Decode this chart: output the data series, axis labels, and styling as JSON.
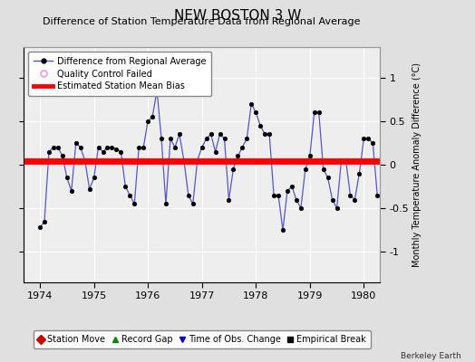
{
  "title": "NEW BOSTON 3 W",
  "subtitle": "Difference of Station Temperature Data from Regional Average",
  "ylabel_right": "Monthly Temperature Anomaly Difference (°C)",
  "ylim": [
    -1.35,
    1.35
  ],
  "xlim": [
    1973.7,
    1980.3
  ],
  "xticks": [
    1974,
    1975,
    1976,
    1977,
    1978,
    1979,
    1980
  ],
  "yticks_right": [
    -1,
    -0.5,
    0,
    0.5,
    1
  ],
  "background_color": "#e0e0e0",
  "plot_bg_color": "#eeeeee",
  "grid_color": "#ffffff",
  "line_color": "#5555cc",
  "marker_color": "#000000",
  "bias_color": "#ff0000",
  "bias_start": 1973.7,
  "bias_end": 1980.3,
  "bias_value": 0.04,
  "footer_text": "Berkeley Earth",
  "time_values": [
    1974.0,
    1974.083,
    1974.167,
    1974.25,
    1974.333,
    1974.417,
    1974.5,
    1974.583,
    1974.667,
    1974.75,
    1974.833,
    1974.917,
    1975.0,
    1975.083,
    1975.167,
    1975.25,
    1975.333,
    1975.417,
    1975.5,
    1975.583,
    1975.667,
    1975.75,
    1975.833,
    1975.917,
    1976.0,
    1976.083,
    1976.167,
    1976.25,
    1976.333,
    1976.417,
    1976.5,
    1976.583,
    1976.667,
    1976.75,
    1976.833,
    1976.917,
    1977.0,
    1977.083,
    1977.167,
    1977.25,
    1977.333,
    1977.417,
    1977.5,
    1977.583,
    1977.667,
    1977.75,
    1977.833,
    1977.917,
    1978.0,
    1978.083,
    1978.167,
    1978.25,
    1978.333,
    1978.417,
    1978.5,
    1978.583,
    1978.667,
    1978.75,
    1978.833,
    1978.917,
    1979.0,
    1979.083,
    1979.167,
    1979.25,
    1979.333,
    1979.417,
    1979.5,
    1979.583,
    1979.667,
    1979.75,
    1979.833,
    1979.917,
    1980.0,
    1980.083,
    1980.167,
    1980.25
  ],
  "data_values": [
    -0.72,
    -0.65,
    0.15,
    0.2,
    0.2,
    0.1,
    -0.15,
    -0.3,
    0.25,
    0.2,
    0.05,
    -0.28,
    -0.15,
    0.2,
    0.15,
    0.2,
    0.2,
    0.18,
    0.15,
    -0.25,
    -0.35,
    -0.45,
    0.2,
    0.2,
    0.5,
    0.55,
    0.85,
    0.3,
    -0.45,
    0.3,
    0.2,
    0.35,
    0.05,
    -0.35,
    -0.45,
    0.05,
    0.2,
    0.3,
    0.35,
    0.15,
    0.35,
    0.3,
    -0.4,
    -0.05,
    0.1,
    0.2,
    0.3,
    0.7,
    0.6,
    0.45,
    0.35,
    0.35,
    -0.35,
    -0.35,
    -0.75,
    -0.3,
    -0.25,
    -0.4,
    -0.5,
    -0.05,
    0.1,
    0.6,
    0.6,
    -0.05,
    -0.15,
    -0.4,
    -0.5,
    0.05,
    0.05,
    -0.35,
    -0.4,
    -0.1,
    0.3,
    0.3,
    0.25,
    -0.35
  ],
  "title_fontsize": 11,
  "subtitle_fontsize": 8,
  "tick_fontsize": 8,
  "ylabel_fontsize": 7,
  "legend1_fontsize": 7,
  "legend2_fontsize": 7
}
